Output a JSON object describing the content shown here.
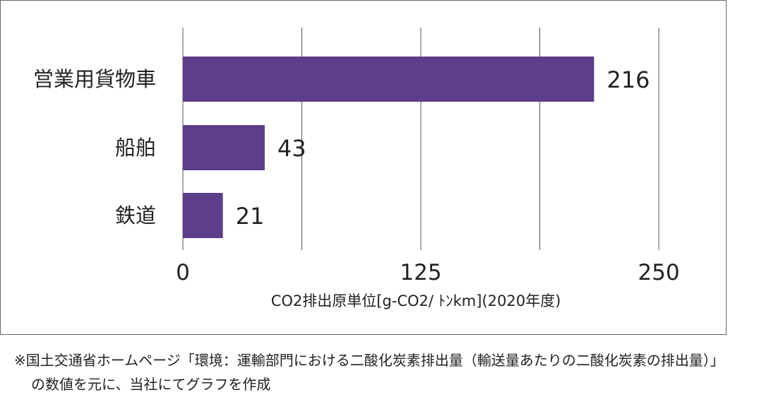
{
  "chart_data": {
    "type": "bar",
    "orientation": "horizontal",
    "categories": [
      "営業用貨物車",
      "船舶",
      "鉄道"
    ],
    "values": [
      216,
      43,
      21
    ],
    "data_labels": [
      "216",
      "43",
      "21"
    ],
    "xlabel": "CO2排出原単位[g-CO2/ ﾄﾝkm](2020年度)",
    "ylabel": "",
    "xlim": [
      0,
      250
    ],
    "x_ticks": [
      0,
      125,
      250
    ],
    "x_tick_labels": [
      "0",
      "125",
      "250"
    ],
    "gridlines_at": [
      0,
      62.5,
      125,
      187.5,
      250
    ],
    "grid": true,
    "legend": "none",
    "bar_color": "#5d3e8a"
  },
  "footnote": {
    "line1": "※国土交通省ホームページ「環境：運輸部門における二酸化炭素排出量（輸送量あたりの二酸化炭素の排出量）」",
    "line2": "の数値を元に、当社にてグラフを作成"
  },
  "colors": {
    "bar": "#5d3e8a",
    "grid": "#555555",
    "frame": "#666666",
    "text": "#222222"
  }
}
